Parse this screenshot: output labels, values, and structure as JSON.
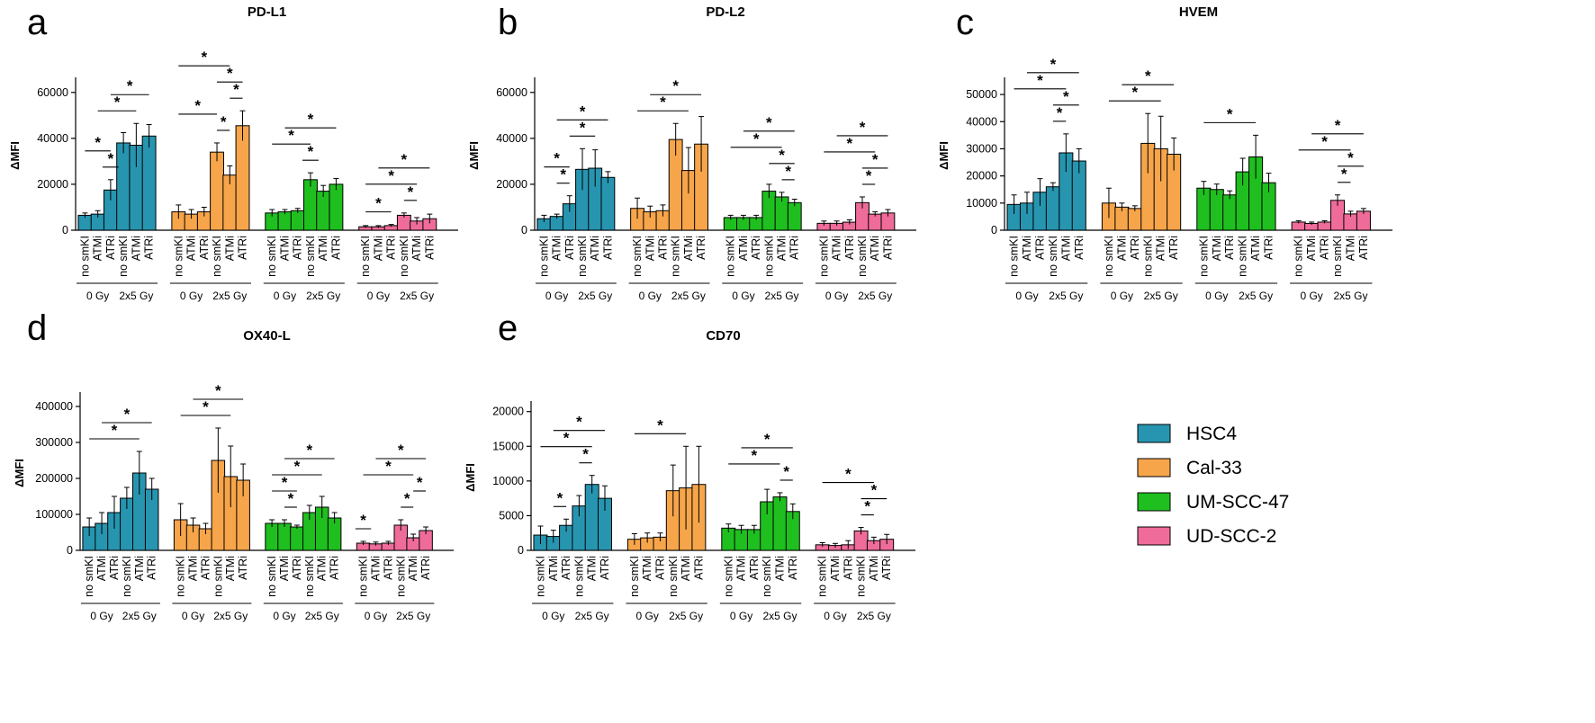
{
  "legend": [
    {
      "name": "HSC4",
      "color": "#2795b0"
    },
    {
      "name": "Cal-33",
      "color": "#f7a54a"
    },
    {
      "name": "UM-SCC-47",
      "color": "#1fbf1f"
    },
    {
      "name": "UD-SCC-2",
      "color": "#ef6b9a"
    }
  ],
  "x_tick_labels": [
    "no smKI",
    "ATMi",
    "ATRi"
  ],
  "group_labels": [
    "0 Gy",
    "2x5 Gy"
  ],
  "significance_marker": "*",
  "chart_data": [
    {
      "panel": "a",
      "type": "bar",
      "title": "PD-L1",
      "ylabel": "ΔMFI",
      "ylim": [
        0,
        65000
      ],
      "yticks": [
        0,
        20000,
        40000,
        60000
      ],
      "series": [
        {
          "name": "HSC4",
          "values": [
            6500,
            7000,
            17500,
            38000,
            37000,
            41000
          ],
          "errors": [
            1000,
            1500,
            4500,
            4500,
            9500,
            5000
          ]
        },
        {
          "name": "Cal-33",
          "values": [
            8000,
            7000,
            8000,
            34000,
            24000,
            45500
          ],
          "errors": [
            3000,
            2000,
            2000,
            4000,
            4000,
            6500
          ]
        },
        {
          "name": "UM-SCC-47",
          "values": [
            7500,
            8000,
            8500,
            22000,
            17000,
            20000
          ],
          "errors": [
            1500,
            1000,
            1000,
            3000,
            2500,
            2500
          ]
        },
        {
          "name": "UD-SCC-2",
          "values": [
            1500,
            1500,
            2000,
            6500,
            4000,
            5000
          ],
          "errors": [
            500,
            500,
            500,
            1000,
            1500,
            2000
          ]
        }
      ],
      "significance": [
        {
          "series": 0,
          "brackets": [
            [
              0,
              2
            ],
            [
              2,
              2
            ],
            [
              1,
              4
            ],
            [
              2,
              5
            ]
          ]
        },
        {
          "series": 1,
          "brackets": [
            [
              0,
              3
            ],
            [
              0,
              4
            ],
            [
              3,
              5
            ],
            [
              3,
              4
            ],
            [
              4,
              5
            ]
          ]
        },
        {
          "series": 2,
          "brackets": [
            [
              0,
              3
            ],
            [
              1,
              5
            ],
            [
              3,
              3
            ]
          ]
        },
        {
          "series": 3,
          "brackets": [
            [
              0,
              2
            ],
            [
              0,
              4
            ],
            [
              1,
              5
            ],
            [
              3,
              4
            ]
          ]
        }
      ]
    },
    {
      "panel": "b",
      "type": "bar",
      "title": "PD-L2",
      "ylabel": "ΔMFI",
      "ylim": [
        0,
        65000
      ],
      "yticks": [
        0,
        20000,
        40000,
        60000
      ],
      "series": [
        {
          "name": "HSC4",
          "values": [
            5000,
            6000,
            11500,
            26500,
            27000,
            23000
          ],
          "errors": [
            1500,
            1000,
            3500,
            9000,
            8000,
            2500
          ]
        },
        {
          "name": "Cal-33",
          "values": [
            9500,
            8000,
            8500,
            39500,
            26000,
            37500
          ],
          "errors": [
            4500,
            2500,
            2500,
            7000,
            10000,
            12000
          ]
        },
        {
          "name": "UM-SCC-47",
          "values": [
            5500,
            5500,
            5500,
            17000,
            14500,
            12000
          ],
          "errors": [
            1000,
            1000,
            1000,
            3000,
            2000,
            1500
          ]
        },
        {
          "name": "UD-SCC-2",
          "values": [
            3000,
            3000,
            3500,
            12000,
            7000,
            7500
          ],
          "errors": [
            1000,
            1000,
            1000,
            2500,
            1000,
            1500
          ]
        }
      ],
      "significance": [
        {
          "series": 0,
          "brackets": [
            [
              0,
              2
            ],
            [
              1,
              2
            ],
            [
              2,
              4
            ],
            [
              1,
              5
            ]
          ]
        },
        {
          "series": 1,
          "brackets": [
            [
              0,
              4
            ],
            [
              1,
              5
            ]
          ]
        },
        {
          "series": 2,
          "brackets": [
            [
              0,
              4
            ],
            [
              1,
              5
            ],
            [
              3,
              5
            ],
            [
              4,
              5
            ]
          ]
        },
        {
          "series": 3,
          "brackets": [
            [
              0,
              4
            ],
            [
              1,
              5
            ],
            [
              3,
              4
            ],
            [
              3,
              5
            ]
          ]
        }
      ]
    },
    {
      "panel": "c",
      "type": "bar",
      "title": "HVEM",
      "ylabel": "ΔMFI",
      "ylim": [
        0,
        55000
      ],
      "yticks": [
        0,
        10000,
        20000,
        30000,
        40000,
        50000
      ],
      "series": [
        {
          "name": "HSC4",
          "values": [
            9500,
            10000,
            14000,
            16000,
            28500,
            25500
          ],
          "errors": [
            3500,
            4000,
            5000,
            1500,
            7000,
            4500
          ]
        },
        {
          "name": "Cal-33",
          "values": [
            10000,
            8500,
            8000,
            32000,
            30000,
            28000
          ],
          "errors": [
            5500,
            1500,
            1000,
            11000,
            12000,
            6000
          ]
        },
        {
          "name": "UM-SCC-47",
          "values": [
            15500,
            15000,
            13000,
            21500,
            27000,
            17500
          ],
          "errors": [
            2500,
            2000,
            1500,
            5000,
            8000,
            3500
          ]
        },
        {
          "name": "UD-SCC-2",
          "values": [
            3000,
            2500,
            3000,
            11000,
            6000,
            7000
          ],
          "errors": [
            500,
            500,
            500,
            2000,
            1000,
            1000
          ]
        }
      ],
      "significance": [
        {
          "series": 0,
          "brackets": [
            [
              0,
              4
            ],
            [
              1,
              5
            ],
            [
              3,
              4
            ],
            [
              3,
              5
            ]
          ]
        },
        {
          "series": 1,
          "brackets": [
            [
              0,
              4
            ],
            [
              1,
              5
            ]
          ]
        },
        {
          "series": 2,
          "brackets": [
            [
              0,
              4
            ]
          ]
        },
        {
          "series": 3,
          "brackets": [
            [
              0,
              4
            ],
            [
              1,
              5
            ],
            [
              3,
              5
            ],
            [
              3,
              4
            ]
          ]
        }
      ]
    },
    {
      "panel": "d",
      "type": "bar",
      "title": "OX40-L",
      "ylabel": "ΔMFI",
      "ylim": [
        0,
        430000
      ],
      "yticks": [
        0,
        100000,
        200000,
        300000,
        400000
      ],
      "series": [
        {
          "name": "HSC4",
          "values": [
            65000,
            75000,
            105000,
            145000,
            215000,
            170000
          ],
          "errors": [
            25000,
            30000,
            45000,
            30000,
            60000,
            30000
          ]
        },
        {
          "name": "Cal-33",
          "values": [
            85000,
            70000,
            60000,
            250000,
            205000,
            195000
          ],
          "errors": [
            45000,
            20000,
            15000,
            90000,
            85000,
            45000
          ]
        },
        {
          "name": "UM-SCC-47",
          "values": [
            75000,
            75000,
            65000,
            105000,
            120000,
            90000
          ],
          "errors": [
            10000,
            10000,
            5000,
            20000,
            30000,
            15000
          ]
        },
        {
          "name": "UD-SCC-2",
          "values": [
            20000,
            18000,
            20000,
            70000,
            35000,
            55000
          ],
          "errors": [
            5000,
            5000,
            5000,
            15000,
            10000,
            10000
          ]
        }
      ],
      "significance": [
        {
          "series": 0,
          "brackets": [
            [
              0,
              4
            ],
            [
              1,
              5
            ]
          ]
        },
        {
          "series": 1,
          "brackets": [
            [
              0,
              4
            ],
            [
              1,
              5
            ]
          ]
        },
        {
          "series": 2,
          "brackets": [
            [
              0,
              2
            ],
            [
              1,
              2
            ],
            [
              0,
              4
            ],
            [
              1,
              5
            ]
          ]
        },
        {
          "series": 3,
          "brackets": [
            [
              0,
              0
            ],
            [
              0,
              4
            ],
            [
              1,
              5
            ],
            [
              3,
              4
            ],
            [
              4,
              5
            ]
          ]
        }
      ]
    },
    {
      "panel": "e",
      "type": "bar",
      "title": "CD70",
      "ylabel": "ΔMFI",
      "ylim": [
        0,
        21000
      ],
      "yticks": [
        0,
        5000,
        10000,
        15000,
        20000
      ],
      "series": [
        {
          "name": "HSC4",
          "values": [
            2200,
            2000,
            3600,
            6400,
            9500,
            7500
          ],
          "errors": [
            1300,
            900,
            900,
            1500,
            1300,
            1800
          ]
        },
        {
          "name": "Cal-33",
          "values": [
            1600,
            1800,
            1900,
            8600,
            9000,
            9500
          ],
          "errors": [
            800,
            700,
            600,
            3700,
            6000,
            5500
          ]
        },
        {
          "name": "UM-SCC-47",
          "values": [
            3200,
            3000,
            3000,
            7000,
            7700,
            5600
          ],
          "errors": [
            600,
            600,
            600,
            1800,
            600,
            1100
          ]
        },
        {
          "name": "UD-SCC-2",
          "values": [
            800,
            700,
            800,
            2800,
            1400,
            1600
          ],
          "errors": [
            300,
            300,
            600,
            500,
            500,
            700
          ]
        }
      ],
      "significance": [
        {
          "series": 0,
          "brackets": [
            [
              1,
              2
            ],
            [
              3,
              4
            ],
            [
              0,
              4
            ],
            [
              1,
              5
            ]
          ]
        },
        {
          "series": 1,
          "brackets": [
            [
              0,
              4
            ]
          ]
        },
        {
          "series": 2,
          "brackets": [
            [
              0,
              4
            ],
            [
              1,
              5
            ],
            [
              4,
              5
            ]
          ]
        },
        {
          "series": 3,
          "brackets": [
            [
              0,
              4
            ],
            [
              3,
              5
            ],
            [
              3,
              4
            ]
          ]
        }
      ]
    }
  ]
}
